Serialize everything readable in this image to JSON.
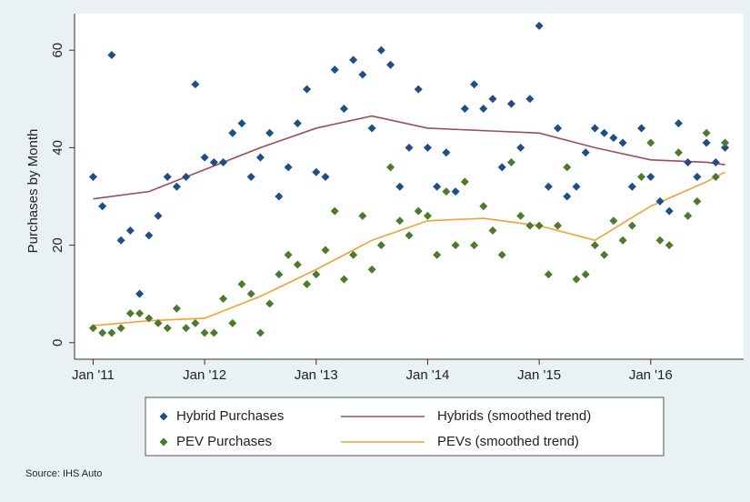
{
  "chart_data": {
    "type": "scatter",
    "ylabel": "Purchases by Month",
    "source": "Source: IHS Auto",
    "x": [
      0,
      1,
      2,
      3,
      4,
      5,
      6,
      7,
      8,
      9,
      10,
      11,
      12,
      13,
      14,
      15,
      16,
      17,
      18,
      19,
      20,
      21,
      22,
      23,
      24,
      25,
      26,
      27,
      28,
      29,
      30,
      31,
      32,
      33,
      34,
      35,
      36,
      37,
      38,
      39,
      40,
      41,
      42,
      43,
      44,
      45,
      46,
      47,
      48,
      49,
      50,
      51,
      52,
      53,
      54,
      55,
      56,
      57,
      58,
      59,
      60,
      61,
      62,
      63,
      64,
      65,
      66,
      67,
      68
    ],
    "xlim": [
      -2,
      70
    ],
    "xticks": [
      {
        "value": 0,
        "label": "Jan '11"
      },
      {
        "value": 12,
        "label": "Jan '12"
      },
      {
        "value": 24,
        "label": "Jan '13"
      },
      {
        "value": 36,
        "label": "Jan '14"
      },
      {
        "value": 48,
        "label": "Jan '15"
      },
      {
        "value": 60,
        "label": "Jan '16"
      }
    ],
    "ylim": [
      -3.4,
      67.5
    ],
    "yticks": [
      0,
      20,
      40,
      60
    ],
    "series": [
      {
        "name": "Hybrid Purchases",
        "color": "#1d4e85",
        "style": "markers",
        "values": [
          34,
          28,
          59,
          21,
          23,
          10,
          22,
          26,
          34,
          32,
          34,
          53,
          38,
          37,
          37,
          43,
          45,
          34,
          38,
          43,
          30,
          36,
          45,
          52,
          35,
          34,
          56,
          48,
          58,
          55,
          44,
          60,
          57,
          32,
          40,
          52,
          40,
          32,
          39,
          31,
          48,
          53,
          48,
          50,
          36,
          49,
          40,
          50,
          65,
          32,
          44,
          30,
          32,
          39,
          44,
          43,
          42,
          41,
          32,
          44,
          34,
          29,
          27,
          45,
          37,
          34,
          41,
          37,
          40
        ]
      },
      {
        "name": "PEV Purchases",
        "color": "#4d7a2c",
        "style": "markers",
        "values": [
          3,
          2,
          2,
          3,
          6,
          6,
          5,
          4,
          3,
          7,
          3,
          4,
          2,
          2,
          9,
          4,
          12,
          10,
          2,
          8,
          14,
          18,
          16,
          12,
          14,
          19,
          27,
          13,
          18,
          26,
          15,
          20,
          36,
          25,
          22,
          27,
          26,
          18,
          31,
          20,
          33,
          20,
          28,
          23,
          18,
          37,
          26,
          24,
          24,
          14,
          24,
          36,
          13,
          14,
          20,
          18,
          25,
          21,
          24,
          34,
          41,
          21,
          20,
          39,
          26,
          29,
          43,
          34,
          41
        ]
      },
      {
        "name": "Hybrids (smoothed trend)",
        "color": "#a24b57",
        "style": "line",
        "x": [
          0,
          6,
          12,
          18,
          24,
          30,
          36,
          42,
          48,
          54,
          60,
          66,
          68
        ],
        "values": [
          29.5,
          31,
          35.5,
          40,
          44,
          46.5,
          44,
          43.5,
          43,
          40,
          37.5,
          37,
          36.5
        ]
      },
      {
        "name": "PEVs (smoothed trend)",
        "color": "#f2a233",
        "style": "line",
        "x": [
          0,
          6,
          12,
          18,
          24,
          30,
          36,
          42,
          48,
          54,
          60,
          66,
          68
        ],
        "values": [
          3.5,
          4.5,
          5,
          9.5,
          15,
          21,
          25,
          25.5,
          24,
          21,
          28,
          33,
          35
        ]
      }
    ]
  }
}
